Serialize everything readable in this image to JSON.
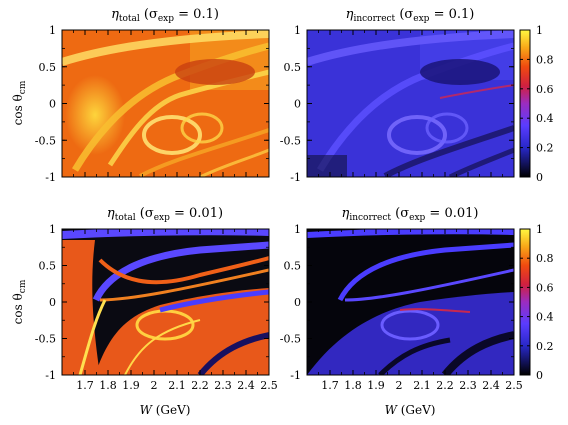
{
  "chart_data": [
    {
      "type": "heatmap",
      "title_main": "η",
      "title_sub": "total",
      "title_rest": " (σ",
      "title_rest_sub": "exp",
      "title_value": " = 0.1)",
      "xlim": [
        1.6,
        2.5
      ],
      "ylim": [
        -1,
        1
      ],
      "zlim": [
        0,
        1
      ],
      "colormap": "hot",
      "xlabel": "",
      "ylabel": "cos θcm",
      "dominant_level": 0.8
    },
    {
      "type": "heatmap",
      "title_main": "η",
      "title_sub": "incorrect",
      "title_rest": " (σ",
      "title_rest_sub": "exp",
      "title_value": " = 0.1)",
      "xlim": [
        1.6,
        2.5
      ],
      "ylim": [
        -1,
        1
      ],
      "zlim": [
        0,
        1
      ],
      "colormap": "gnuplot",
      "xlabel": "",
      "ylabel": "",
      "dominant_level": 0.25
    },
    {
      "type": "heatmap",
      "title_main": "η",
      "title_sub": "total",
      "title_rest": " (σ",
      "title_rest_sub": "exp",
      "title_value": " = 0.01)",
      "xlim": [
        1.6,
        2.5
      ],
      "ylim": [
        -1,
        1
      ],
      "zlim": [
        0,
        1
      ],
      "colormap": "hot",
      "xlabel": "W (GeV)",
      "ylabel": "cos θcm",
      "dominant_level": 0.1
    },
    {
      "type": "heatmap",
      "title_main": "η",
      "title_sub": "incorrect",
      "title_rest": " (σ",
      "title_rest_sub": "exp",
      "title_value": " = 0.01)",
      "xlim": [
        1.6,
        2.5
      ],
      "ylim": [
        -1,
        1
      ],
      "zlim": [
        0,
        1
      ],
      "colormap": "gnuplot",
      "xlabel": "W (GeV)",
      "ylabel": "",
      "dominant_level": 0.05
    }
  ],
  "axes": {
    "x_ticks": [
      "1.7",
      "1.8",
      "1.9",
      "2",
      "2.1",
      "2.2",
      "2.3",
      "2.4",
      "2.5"
    ],
    "x_tick_values": [
      1.7,
      1.8,
      1.9,
      2.0,
      2.1,
      2.2,
      2.3,
      2.4,
      2.5
    ],
    "y_ticks": [
      "1",
      "0.5",
      "0",
      "-0.5",
      "-1"
    ],
    "y_tick_values": [
      1,
      0.5,
      0,
      -0.5,
      -1
    ],
    "xlabel_main": "W",
    "xlabel_unit": " (GeV)",
    "ylabel_main": "cos θ",
    "ylabel_sub": "cm"
  },
  "colorbar": {
    "ticks": [
      "1",
      "0.8",
      "0.6",
      "0.4",
      "0.2",
      "0"
    ],
    "tick_values": [
      1,
      0.8,
      0.6,
      0.4,
      0.2,
      0
    ]
  }
}
